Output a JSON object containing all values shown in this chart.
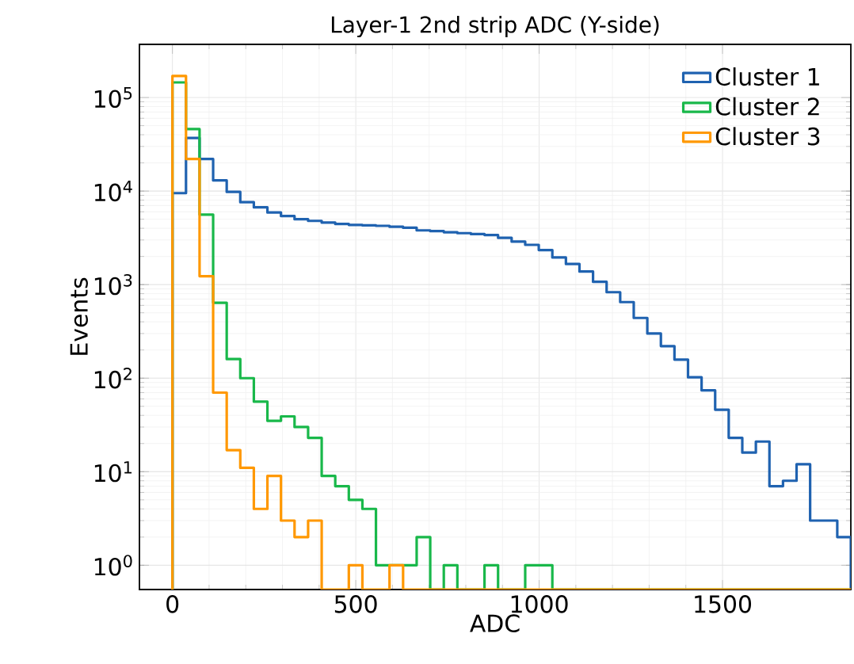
{
  "chart_data": {
    "type": "histogram",
    "title": "Layer-1 2nd strip ADC (Y-side)",
    "xlabel": "ADC",
    "ylabel": "Events",
    "bins": [
      0,
      37,
      74,
      111,
      148,
      185,
      222,
      259,
      296,
      333,
      370,
      407,
      444,
      481,
      518,
      555,
      592,
      629,
      666,
      703,
      740,
      777,
      814,
      851,
      888,
      925,
      962,
      999,
      1036,
      1073,
      1110,
      1147,
      1184,
      1221,
      1258,
      1295,
      1332,
      1369,
      1406,
      1443,
      1480,
      1517,
      1554,
      1591,
      1628,
      1665,
      1702,
      1739,
      1776,
      1813,
      1850
    ],
    "series": [
      {
        "name": "Cluster 1",
        "color": "#1f62b0",
        "values": [
          9500,
          37000,
          22000,
          13000,
          9800,
          7600,
          6700,
          5900,
          5400,
          5000,
          4800,
          4600,
          4450,
          4350,
          4300,
          4250,
          4150,
          4050,
          3800,
          3730,
          3630,
          3550,
          3470,
          3390,
          3160,
          2880,
          2660,
          2340,
          1950,
          1660,
          1380,
          1070,
          830,
          650,
          440,
          300,
          220,
          158,
          102,
          74,
          46,
          23,
          16,
          21,
          7,
          8,
          12,
          3,
          3,
          2
        ]
      },
      {
        "name": "Cluster 2",
        "color": "#19b84a",
        "values": [
          145000,
          46000,
          5600,
          640,
          160,
          100,
          56,
          35,
          39,
          30,
          23,
          9,
          7,
          5,
          4,
          1,
          1,
          1,
          2,
          null,
          1,
          null,
          null,
          1,
          null,
          null,
          1,
          1,
          null,
          null,
          null,
          null,
          null,
          null,
          null,
          null,
          null,
          null,
          null,
          null,
          null,
          null,
          null,
          null,
          null,
          null,
          null,
          null,
          null,
          null
        ]
      },
      {
        "name": "Cluster 3",
        "color": "#ff9800",
        "values": [
          170000,
          22000,
          1230,
          70,
          17,
          11,
          4,
          9,
          3,
          2,
          3,
          null,
          null,
          1,
          null,
          null,
          1,
          null,
          null,
          null,
          null,
          null,
          null,
          null,
          null,
          null,
          null,
          null,
          null,
          null,
          null,
          null,
          null,
          null,
          null,
          null,
          null,
          null,
          null,
          null,
          null,
          null,
          null,
          null,
          null,
          null,
          null,
          null,
          null,
          null
        ]
      }
    ],
    "xlim": [
      -90,
      1850
    ],
    "ylim": [
      0.55,
      370000
    ],
    "log": "y",
    "xticks": [
      0,
      500,
      1000,
      1500
    ],
    "yticks": [
      {
        "value": 1,
        "label": "10$^{0}$"
      },
      {
        "value": 10,
        "label": "10$^{1}$"
      },
      {
        "value": 100,
        "label": "10$^{2}$"
      },
      {
        "value": 1000,
        "label": "10$^{3}$"
      },
      {
        "value": 10000,
        "label": "10$^{4}$"
      },
      {
        "value": 100000,
        "label": "10$^{5}$"
      }
    ],
    "grid": true,
    "legend": "top right"
  }
}
